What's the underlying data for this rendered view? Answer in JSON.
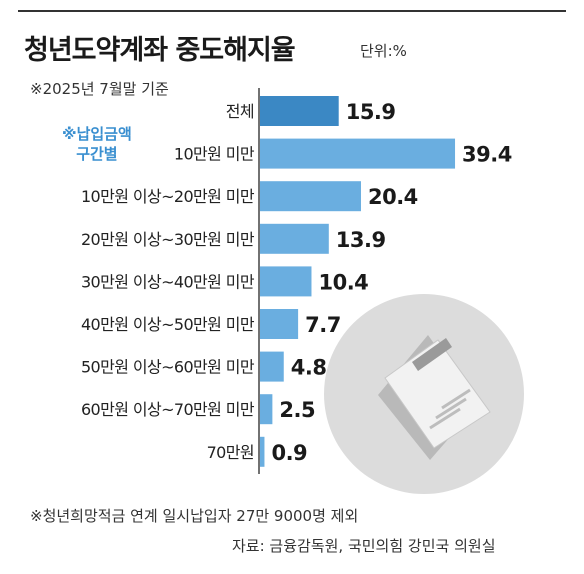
{
  "title": "청년도약계좌 중도해지율",
  "unit": "단위:%",
  "basis": "※2025년 7월말 기준",
  "group_note": [
    "※납입금액",
    "구간별"
  ],
  "footnote": "※청년희망적금 연계 일시납입자 27만 9000명 제외",
  "source": "자료: 금융감독원, 국민의힘 강민국 의원실",
  "colors": {
    "highlight": "#3b88c4",
    "bar": "#6aaee0",
    "accent_text": "#3a8fd0"
  },
  "chart_data": {
    "type": "bar",
    "orientation": "horizontal",
    "categories": [
      "전체",
      "10만원 미만",
      "10만원 이상~20만원 미만",
      "20만원 이상~30만원 미만",
      "30만원 이상~40만원 미만",
      "40만원 이상~50만원 미만",
      "50만원 이상~60만원 미만",
      "60만원 이상~70만원 미만",
      "70만원"
    ],
    "values": [
      15.9,
      39.4,
      20.4,
      13.9,
      10.4,
      7.7,
      4.8,
      2.5,
      0.9
    ],
    "value_labels": [
      "15.9",
      "39.4",
      "20.4",
      "13.9",
      "10.4",
      "7.7",
      "4.8",
      "2.5",
      "0.9"
    ],
    "highlight_index": 0,
    "xlim": [
      0,
      40
    ],
    "grid": false,
    "legend": "none"
  }
}
